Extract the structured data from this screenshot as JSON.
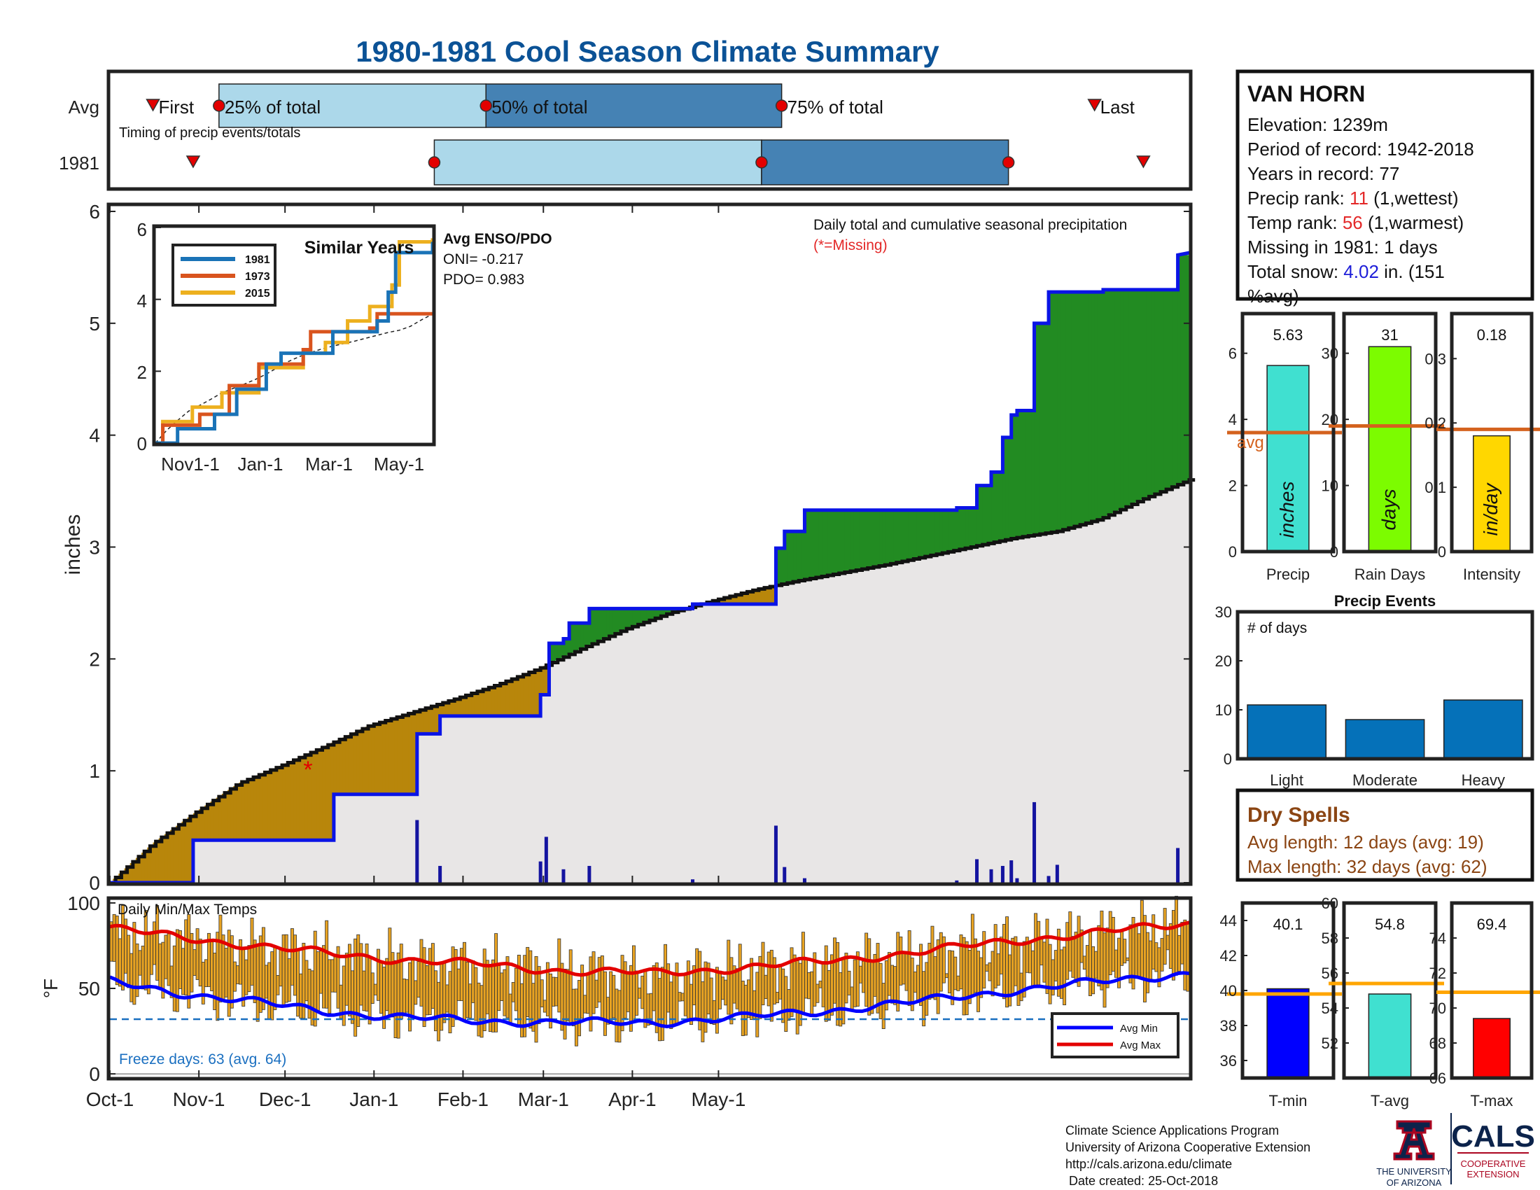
{
  "title": "1980-1981 Cool Season Climate Summary",
  "colors": {
    "title": "#0b5296",
    "frame": "#222222",
    "lightBlue": "#acd8ea",
    "midBlue": "#4582b4",
    "red": "#e30000",
    "orange": "#e8a322",
    "brown": "#b8860b",
    "green": "#228b22",
    "grey": "#e8e6e6",
    "dark": "#111111",
    "line1981": "#1a73b7",
    "line1973": "#d9541e",
    "line2015": "#edb01f",
    "avgLine": "#d4621e",
    "precipBar": "#40e0d0",
    "rainBar": "#7cfc00",
    "intensityBar": "#ffd700",
    "eventsBar": "#0571b9",
    "tminBar": "#0000ff",
    "tavgBar": "#40e0d0",
    "tmaxBar": "#ff0000",
    "tempAvgLine": "#ffa500",
    "dry": "#8b4513",
    "snow": "#1d1dd8",
    "rank": "#e32828",
    "freeze": "#1a6fc0"
  },
  "timing": {
    "rows": [
      "Avg",
      "1981"
    ],
    "labels": {
      "first": "First",
      "p25": "25% of total",
      "p50": "50% of total",
      "p75": "75% of total",
      "last": "Last"
    },
    "note": "Timing of precip events/totals",
    "avg": {
      "first": 15,
      "p25": 38,
      "p50": 131,
      "p75": 234,
      "last": 343
    },
    "y1981": {
      "first": 29,
      "p25": 113,
      "p50": 227,
      "p75": 313,
      "last": 360
    }
  },
  "main": {
    "ylabel": "inches",
    "yticks": [
      0,
      1,
      2,
      3,
      4,
      5,
      6
    ],
    "ylim": [
      0,
      6.05
    ],
    "note": "Daily total and cumulative seasonal precipitation",
    "missing": "(*=Missing)",
    "missing_marker": {
      "day": 69,
      "value": 1.0
    }
  },
  "inset": {
    "title": "Similar Years",
    "legend": [
      "1981",
      "1973",
      "2015"
    ],
    "xticks": [
      "Nov1-1",
      "Jan-1",
      "Mar-1",
      "May-1"
    ],
    "yticks": [
      "0",
      "2",
      "4",
      "6"
    ],
    "enso_title": "Avg ENSO/PDO",
    "oni": "ONI= -0.217",
    "pdo": "PDO= 0.983"
  },
  "station": {
    "name": "VAN HORN",
    "elevation": "Elevation: 1239m",
    "period": "Period of record: 1942-2018",
    "years": "Years in record: 77",
    "precip_rank_label": "Precip rank: ",
    "precip_rank": "11",
    "precip_rank_note": " (1,wettest)",
    "temp_rank_label": "Temp rank: ",
    "temp_rank": "56",
    "temp_rank_note": " (1,warmest)",
    "missing": "Missing in 1981: 1 days",
    "snow_label": "Total snow: ",
    "snow_value": "4.02",
    "snow_note": " in. (151",
    "snow_note2": "%avg)"
  },
  "minibars": [
    {
      "label": "Precip",
      "value": 5.63,
      "value_text": "5.63",
      "avg": 3.6,
      "unit": "inches",
      "ylim": [
        0,
        7.2
      ],
      "yticks": [
        "0",
        "2",
        "4",
        "6"
      ],
      "ytick_values": [
        0,
        2,
        4,
        6
      ],
      "avg_label": "avg"
    },
    {
      "label": "Rain Days",
      "value": 31,
      "value_text": "31",
      "avg": 19,
      "unit": "days",
      "ylim": [
        0,
        36
      ],
      "yticks": [
        "0",
        "10",
        "20",
        "30"
      ],
      "ytick_values": [
        0,
        10,
        20,
        30
      ]
    },
    {
      "label": "Intensity",
      "value": 0.18,
      "value_text": "0.18",
      "avg": 0.19,
      "unit": "in/day",
      "ylim": [
        0,
        0.37
      ],
      "yticks": [
        "0",
        "0.1",
        "0.2",
        "0.3"
      ],
      "ytick_values": [
        0,
        0.1,
        0.2,
        0.3
      ]
    }
  ],
  "events": {
    "title": "Precip Events",
    "ylabel": "# of days",
    "categories": [
      "Light",
      "Moderate",
      "Heavy"
    ],
    "values": [
      11,
      8,
      12
    ],
    "yticks": [
      0,
      10,
      20,
      30
    ],
    "ylim": [
      0,
      30
    ]
  },
  "dry": {
    "title": "Dry Spells",
    "avg": "Avg length: 12 days (avg: 19)",
    "max": "Max length: 32 days (avg: 62)"
  },
  "temps": {
    "title": "Daily Min/Max Temps",
    "ylabel": "°F",
    "yticks": [
      0,
      50,
      100
    ],
    "ylim": [
      -2,
      102
    ],
    "freeze_line": 32,
    "freeze": "Freeze days: 63 (avg. 64)",
    "legend": [
      "Avg Min",
      "Avg Max"
    ]
  },
  "xaxis": [
    "Oct-1",
    "Nov-1",
    "Dec-1",
    "Jan-1",
    "Feb-1",
    "Mar-1",
    "Apr-1",
    "May-1"
  ],
  "tempbars": [
    {
      "label": "T-min",
      "value": 40.1,
      "value_text": "40.1",
      "avg": 39.8,
      "ylim": [
        35,
        45
      ],
      "yticks": [
        "36",
        "38",
        "40",
        "42",
        "44"
      ],
      "ytick_values": [
        36,
        38,
        40,
        42,
        44
      ]
    },
    {
      "label": "T-avg",
      "value": 54.8,
      "value_text": "54.8",
      "avg": 55.4,
      "ylim": [
        50,
        60
      ],
      "yticks": [
        "52",
        "54",
        "56",
        "58",
        "60"
      ],
      "ytick_values": [
        52,
        54,
        56,
        58,
        60
      ]
    },
    {
      "label": "T-max",
      "value": 69.4,
      "value_text": "69.4",
      "avg": 70.9,
      "ylim": [
        66,
        76
      ],
      "yticks": [
        "66",
        "68",
        "70",
        "72",
        "74"
      ],
      "ytick_values": [
        66,
        68,
        70,
        72,
        74
      ]
    }
  ],
  "footer": {
    "lines": [
      "Climate Science Applications Program",
      "University of Arizona Cooperative Extension",
      "http://cals.arizona.edu/climate",
      " Date created: 25-Oct-2018"
    ],
    "ua1": "THE UNIVERSITY",
    "ua2": "OF ARIZONA",
    "cals": "CALS",
    "coop1": "COOPERATIVE",
    "coop2": "EXTENSION"
  },
  "chart_data": [
    {
      "type": "area",
      "title": "Daily total and cumulative seasonal precipitation",
      "ylabel": "inches",
      "ylim": [
        0,
        6.05
      ],
      "x_unit": "day of season (0 = Oct-1)",
      "observed_cumulative_1981": [
        [
          0,
          0
        ],
        [
          29,
          0
        ],
        [
          29,
          0.38
        ],
        [
          78,
          0.38
        ],
        [
          78,
          0.79
        ],
        [
          107,
          0.79
        ],
        [
          107,
          1.33
        ],
        [
          115,
          1.33
        ],
        [
          115,
          1.49
        ],
        [
          150,
          1.49
        ],
        [
          150,
          1.68
        ],
        [
          153,
          1.68
        ],
        [
          153,
          2.14
        ],
        [
          158,
          2.14
        ],
        [
          158,
          2.18
        ],
        [
          160,
          2.18
        ],
        [
          160,
          2.32
        ],
        [
          167,
          2.32
        ],
        [
          167,
          2.45
        ],
        [
          203,
          2.45
        ],
        [
          203,
          2.49
        ],
        [
          232,
          2.49
        ],
        [
          232,
          2.99
        ],
        [
          235,
          2.99
        ],
        [
          235,
          3.14
        ],
        [
          242,
          3.14
        ],
        [
          242,
          3.33
        ],
        [
          295,
          3.33
        ],
        [
          295,
          3.35
        ],
        [
          302,
          3.35
        ],
        [
          302,
          3.55
        ],
        [
          307,
          3.55
        ],
        [
          307,
          3.67
        ],
        [
          311,
          3.67
        ],
        [
          311,
          3.98
        ],
        [
          314,
          3.98
        ],
        [
          314,
          4.18
        ],
        [
          316,
          4.18
        ],
        [
          316,
          4.22
        ],
        [
          322,
          4.22
        ],
        [
          322,
          5.0
        ],
        [
          327,
          5.0
        ],
        [
          327,
          5.28
        ],
        [
          346,
          5.28
        ],
        [
          346,
          5.3
        ],
        [
          372,
          5.3
        ],
        [
          372,
          5.61
        ],
        [
          376,
          5.63
        ]
      ],
      "average_cumulative": [
        [
          0,
          0
        ],
        [
          15,
          0.35
        ],
        [
          30,
          0.63
        ],
        [
          45,
          0.89
        ],
        [
          60,
          1.05
        ],
        [
          75,
          1.22
        ],
        [
          90,
          1.4
        ],
        [
          105,
          1.52
        ],
        [
          120,
          1.64
        ],
        [
          135,
          1.77
        ],
        [
          150,
          1.92
        ],
        [
          165,
          2.1
        ],
        [
          180,
          2.27
        ],
        [
          195,
          2.41
        ],
        [
          210,
          2.52
        ],
        [
          225,
          2.62
        ],
        [
          240,
          2.7
        ],
        [
          255,
          2.77
        ],
        [
          270,
          2.84
        ],
        [
          285,
          2.92
        ],
        [
          300,
          3.0
        ],
        [
          315,
          3.08
        ],
        [
          330,
          3.14
        ],
        [
          345,
          3.25
        ],
        [
          360,
          3.43
        ],
        [
          376,
          3.6
        ]
      ],
      "daily_precip_bars": [
        [
          107,
          0.56
        ],
        [
          115,
          0.15
        ],
        [
          150,
          0.19
        ],
        [
          152,
          0.41
        ],
        [
          158,
          0.12
        ],
        [
          167,
          0.15
        ],
        [
          203,
          0.03
        ],
        [
          232,
          0.51
        ],
        [
          235,
          0.14
        ],
        [
          242,
          0.04
        ],
        [
          295,
          0.02
        ],
        [
          302,
          0.21
        ],
        [
          307,
          0.12
        ],
        [
          311,
          0.15
        ],
        [
          314,
          0.2
        ],
        [
          316,
          0.04
        ],
        [
          322,
          0.72
        ],
        [
          327,
          0.06
        ],
        [
          330,
          0.16
        ],
        [
          372,
          0.31
        ]
      ]
    },
    {
      "type": "line",
      "title": "Similar Years",
      "x": [
        "Nov1-1",
        "Jan-1",
        "Mar-1",
        "May-1"
      ],
      "series": [
        {
          "name": "1981",
          "values": [
            [
              0,
              0
            ],
            [
              30,
              0.4
            ],
            [
              80,
              0.8
            ],
            [
              110,
              1.5
            ],
            [
              150,
              2.2
            ],
            [
              170,
              2.5
            ],
            [
              240,
              3.1
            ],
            [
              300,
              3.4
            ],
            [
              315,
              4.2
            ],
            [
              325,
              5.3
            ],
            [
              375,
              5.6
            ]
          ]
        },
        {
          "name": "1973",
          "values": [
            [
              0,
              0
            ],
            [
              10,
              0.5
            ],
            [
              60,
              0.8
            ],
            [
              100,
              1.6
            ],
            [
              140,
              2.2
            ],
            [
              200,
              2.6
            ],
            [
              210,
              3.1
            ],
            [
              290,
              3.2
            ],
            [
              300,
              3.6
            ],
            [
              375,
              3.6
            ]
          ]
        },
        {
          "name": "2015",
          "values": [
            [
              0,
              0
            ],
            [
              10,
              0.6
            ],
            [
              50,
              1.0
            ],
            [
              90,
              1.4
            ],
            [
              140,
              2.1
            ],
            [
              200,
              2.5
            ],
            [
              230,
              2.8
            ],
            [
              260,
              3.4
            ],
            [
              290,
              3.8
            ],
            [
              320,
              4.4
            ],
            [
              330,
              5.6
            ],
            [
              375,
              5.7
            ]
          ]
        }
      ]
    },
    {
      "type": "bar",
      "title": "Precip Events",
      "ylabel": "# of days",
      "categories": [
        "Light",
        "Moderate",
        "Heavy"
      ],
      "values": [
        11,
        8,
        12
      ],
      "ylim": [
        0,
        30
      ]
    },
    {
      "type": "line",
      "title": "Daily Min/Max Temps",
      "ylabel": "°F",
      "ylim": [
        -2,
        102
      ],
      "series": [
        {
          "name": "Avg Max",
          "values": [
            [
              0,
              85
            ],
            [
              30,
              79
            ],
            [
              60,
              73
            ],
            [
              80,
              70
            ],
            [
              100,
              67
            ],
            [
              130,
              64
            ],
            [
              160,
              60
            ],
            [
              190,
              59
            ],
            [
              220,
              62
            ],
            [
              250,
              66
            ],
            [
              280,
              71
            ],
            [
              310,
              77
            ],
            [
              340,
              82
            ],
            [
              376,
              88
            ]
          ]
        },
        {
          "name": "Avg Min",
          "values": [
            [
              0,
              54
            ],
            [
              30,
              46
            ],
            [
              60,
              40
            ],
            [
              80,
              36
            ],
            [
              100,
              33
            ],
            [
              130,
              31
            ],
            [
              160,
              30
            ],
            [
              190,
              30
            ],
            [
              220,
              33
            ],
            [
              250,
              37
            ],
            [
              280,
              42
            ],
            [
              310,
              48
            ],
            [
              340,
              53
            ],
            [
              376,
              59
            ]
          ]
        }
      ]
    }
  ]
}
